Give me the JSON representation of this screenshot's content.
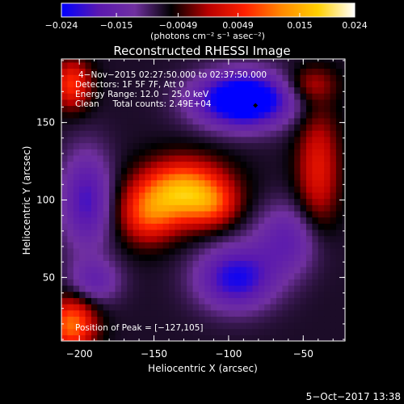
{
  "chart_data": {
    "type": "heatmap",
    "title": "Reconstructed RHESSI Image",
    "xlabel": "Heliocentric X (arcsec)",
    "ylabel": "Heliocentric Y (arcsec)",
    "xlim": [
      -212,
      -22
    ],
    "ylim": [
      9,
      191
    ],
    "x_ticks": [
      -200,
      -150,
      -100,
      -50
    ],
    "x_tick_labels": [
      "−200",
      "−150",
      "−100",
      "−50"
    ],
    "y_ticks": [
      50,
      100,
      150
    ],
    "y_tick_labels": [
      "50",
      "100",
      "150"
    ],
    "colorbar": {
      "min": -0.024,
      "max": 0.024,
      "ticks": [
        -0.024,
        -0.015,
        -0.0049,
        0.0049,
        0.015,
        0.024
      ],
      "tick_labels": [
        "−0.024",
        "−0.015",
        "−0.0049",
        "0.0049",
        "0.015",
        "0.024"
      ],
      "units_label": "(photons cm⁻² s⁻¹ asec⁻²)",
      "colormap": [
        "#0000ff",
        "#5a18b0",
        "#7030a0",
        "#000000",
        "#b80000",
        "#ff2000",
        "#ff8800",
        "#ffd000",
        "#ffffff"
      ]
    },
    "annotations": [
      "4−Nov−2015 02:27:50.000 to 02:37:50.000",
      "Detectors: 1F 5F 7F, Att 0",
      "Energy Range: 12.0 − 25.0 keV",
      "Clean     Total counts: 2.49E+04"
    ],
    "peak_label": "Position of Peak = [−127,105]",
    "peak": {
      "x": -127,
      "y": 105
    },
    "sources": [
      {
        "x": -130,
        "y": 105,
        "sx": 20,
        "sy": 14,
        "amp": 0.024
      },
      {
        "x": -155,
        "y": 90,
        "sx": 13,
        "sy": 13,
        "amp": 0.012
      },
      {
        "x": -110,
        "y": 97,
        "sx": 11,
        "sy": 9,
        "amp": 0.007
      },
      {
        "x": -205,
        "y": 175,
        "sx": 9,
        "sy": 11,
        "amp": 0.014
      },
      {
        "x": -205,
        "y": 20,
        "sx": 11,
        "sy": 12,
        "amp": 0.018
      },
      {
        "x": -40,
        "y": 120,
        "sx": 10,
        "sy": 28,
        "amp": 0.011
      },
      {
        "x": -45,
        "y": 175,
        "sx": 12,
        "sy": 8,
        "amp": 0.007
      },
      {
        "x": -90,
        "y": 165,
        "sx": 22,
        "sy": 12,
        "amp": -0.024
      },
      {
        "x": -195,
        "y": 100,
        "sx": 12,
        "sy": 22,
        "amp": -0.012
      },
      {
        "x": -95,
        "y": 50,
        "sx": 18,
        "sy": 14,
        "amp": -0.015
      },
      {
        "x": -190,
        "y": 48,
        "sx": 12,
        "sy": 10,
        "amp": -0.008
      },
      {
        "x": -60,
        "y": 75,
        "sx": 16,
        "sy": 16,
        "amp": -0.009
      }
    ],
    "background": -0.0075,
    "marker": {
      "x": -82,
      "y": 161
    }
  },
  "footer": {
    "timestamp": "5−Oct−2017 13:38"
  }
}
